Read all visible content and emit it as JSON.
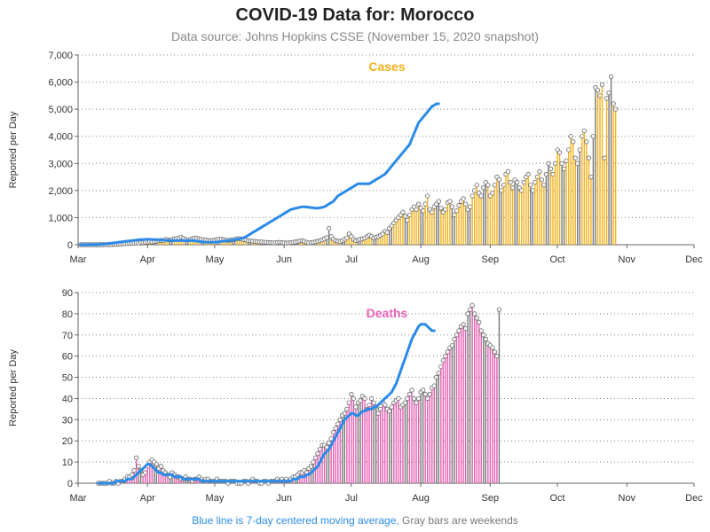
{
  "header": {
    "title": "COVID-19 Data for: Morocco",
    "subtitle": "Data source: Johns Hopkins CSSE (November 15, 2020 snapshot)"
  },
  "footnote": {
    "blue_text": "Blue line is 7-day centered moving average,",
    "gray_text": " Gray bars are weekends"
  },
  "colors": {
    "cases": "#f2b21d",
    "deaths": "#e65fb3",
    "moving_average": "#2b8ae8",
    "weekend": "#777777",
    "grid": "#888888"
  },
  "chart_data": [
    {
      "type": "bar",
      "title": "Cases",
      "ylabel": "Reported per Day",
      "x_ticks": [
        "Mar",
        "Apr",
        "May",
        "Jun",
        "Jul",
        "Aug",
        "Sep",
        "Oct",
        "Nov",
        "Dec"
      ],
      "x_range": [
        "2020-03-01",
        "2020-12-01"
      ],
      "ylim": [
        0,
        7000
      ],
      "y_ticks": [
        "0",
        "1,000",
        "2,000",
        "3,000",
        "4,000",
        "5,000",
        "6,000",
        "7,000"
      ],
      "grid": "horizontal dotted",
      "series": [
        {
          "name": "Cases",
          "start_date": "2020-03-02",
          "values": [
            1,
            0,
            0,
            0,
            0,
            0,
            0,
            1,
            1,
            2,
            2,
            3,
            4,
            6,
            10,
            10,
            15,
            20,
            25,
            35,
            40,
            45,
            50,
            55,
            60,
            70,
            65,
            80,
            80,
            90,
            100,
            110,
            100,
            120,
            130,
            150,
            160,
            150,
            200,
            180,
            170,
            190,
            210,
            230,
            250,
            280,
            230,
            200,
            180,
            190,
            220,
            250,
            240,
            210,
            200,
            180,
            170,
            160,
            150,
            160,
            170,
            190,
            200,
            210,
            180,
            170,
            160,
            170,
            180,
            200,
            220,
            230,
            210,
            190,
            170,
            150,
            140,
            130,
            120,
            110,
            100,
            100,
            90,
            90,
            80,
            80,
            70,
            70,
            80,
            90,
            80,
            70,
            60,
            70,
            80,
            90,
            100,
            120,
            140,
            150,
            120,
            90,
            70,
            80,
            90,
            110,
            130,
            150,
            180,
            220,
            260,
            600,
            300,
            200,
            150,
            130,
            120,
            150,
            200,
            250,
            400,
            300,
            200,
            150,
            180,
            200,
            220,
            250,
            300,
            350,
            300,
            250,
            280,
            300,
            350,
            400,
            500,
            450,
            600,
            700,
            800,
            900,
            1000,
            1100,
            1200,
            1050,
            900,
            1100,
            1300,
            1400,
            1300,
            1500,
            1350,
            1250,
            1500,
            1800,
            1300,
            1200,
            1400,
            1500,
            1600,
            1350,
            1200,
            1300,
            1550,
            1600,
            1400,
            1100,
            1250,
            1450,
            1600,
            1700,
            1500,
            1300,
            1400,
            1800,
            2000,
            2200,
            1900,
            1800,
            2100,
            2300,
            2200,
            1800,
            1900,
            2200,
            2500,
            2400,
            2000,
            2200,
            2600,
            2700,
            2300,
            2100,
            2400,
            2300,
            2100,
            2000,
            2300,
            2500,
            2600,
            2200,
            2000,
            2300,
            2500,
            2700,
            2400,
            2200,
            2600,
            3000,
            2800,
            2600,
            3000,
            3500,
            3400,
            3000,
            2800,
            3100,
            3500,
            4000,
            3800,
            3200,
            3000,
            3500,
            4000,
            4200,
            3800,
            3200,
            2500,
            4000,
            5800,
            5700,
            5500,
            5900,
            3200,
            5400,
            5600,
            6200,
            5200,
            5000
          ]
        },
        {
          "name": "7-day moving average",
          "start_date": "2020-03-02",
          "values": [
            1,
            1,
            1,
            2,
            2,
            3,
            4,
            6,
            10,
            15,
            22,
            30,
            40,
            50,
            60,
            70,
            80,
            90,
            100,
            110,
            120,
            130,
            140,
            150,
            160,
            170,
            180,
            185,
            190,
            195,
            200,
            200,
            195,
            190,
            185,
            180,
            175,
            170,
            165,
            160,
            155,
            150,
            150,
            150,
            150,
            150,
            150,
            150,
            150,
            150,
            150,
            140,
            130,
            120,
            110,
            100,
            95,
            90,
            88,
            90,
            95,
            100,
            110,
            120,
            130,
            140,
            150,
            160,
            170,
            180,
            200,
            220,
            240,
            260,
            300,
            350,
            400,
            450,
            500,
            550,
            600,
            650,
            700,
            750,
            800,
            850,
            900,
            950,
            1000,
            1050,
            1100,
            1150,
            1200,
            1250,
            1300,
            1320,
            1340,
            1360,
            1380,
            1400,
            1400,
            1390,
            1380,
            1370,
            1360,
            1350,
            1350,
            1360,
            1380,
            1400,
            1450,
            1500,
            1550,
            1600,
            1700,
            1800,
            1850,
            1900,
            1950,
            2000,
            2050,
            2100,
            2150,
            2200,
            2250,
            2250,
            2250,
            2250,
            2250,
            2250,
            2300,
            2350,
            2400,
            2450,
            2500,
            2550,
            2600,
            2700,
            2800,
            2900,
            3000,
            3100,
            3200,
            3300,
            3400,
            3500,
            3600,
            3700,
            3900,
            4100,
            4300,
            4500,
            4600,
            4700,
            4800,
            4900,
            5000,
            5100,
            5150,
            5200,
            5200
          ]
        }
      ]
    },
    {
      "type": "bar",
      "title": "Deaths",
      "ylabel": "Reported per Day",
      "x_ticks": [
        "Mar",
        "Apr",
        "May",
        "Jun",
        "Jul",
        "Aug",
        "Sep",
        "Oct",
        "Nov",
        "Dec"
      ],
      "x_range": [
        "2020-03-01",
        "2020-12-01"
      ],
      "ylim": [
        0,
        90
      ],
      "y_ticks": [
        "0",
        "10",
        "20",
        "30",
        "40",
        "50",
        "60",
        "70",
        "80",
        "90"
      ],
      "grid": "horizontal dotted",
      "series": [
        {
          "name": "Deaths",
          "start_date": "2020-03-10",
          "values": [
            0,
            0,
            0,
            0,
            0,
            1,
            0,
            0,
            1,
            0,
            1,
            1,
            2,
            3,
            3,
            4,
            6,
            12,
            8,
            6,
            4,
            5,
            8,
            10,
            11,
            10,
            9,
            7,
            8,
            6,
            5,
            4,
            3,
            5,
            4,
            3,
            3,
            2,
            2,
            3,
            2,
            2,
            1,
            2,
            2,
            3,
            2,
            1,
            2,
            2,
            1,
            1,
            1,
            2,
            1,
            1,
            1,
            1,
            0,
            1,
            1,
            1,
            0,
            0,
            0,
            1,
            1,
            0,
            1,
            2,
            1,
            1,
            0,
            0,
            1,
            1,
            0,
            1,
            1,
            1,
            2,
            1,
            2,
            1,
            2,
            1,
            2,
            3,
            3,
            4,
            5,
            5,
            6,
            5,
            7,
            8,
            10,
            12,
            14,
            16,
            18,
            18,
            17,
            19,
            21,
            24,
            26,
            28,
            30,
            32,
            33,
            35,
            38,
            42,
            40,
            36,
            38,
            39,
            41,
            40,
            35,
            37,
            40,
            38,
            36,
            33,
            35,
            38,
            37,
            35,
            34,
            36,
            38,
            39,
            40,
            36,
            37,
            38,
            40,
            42,
            44,
            40,
            38,
            40,
            43,
            44,
            42,
            40,
            42,
            45,
            46,
            50,
            52,
            55,
            58,
            60,
            62,
            64,
            65,
            68,
            70,
            72,
            74,
            75,
            73,
            80,
            82,
            84,
            80,
            78,
            76,
            72,
            70,
            68,
            66,
            65,
            64,
            62,
            60,
            82
          ]
        },
        {
          "name": "7-day moving average",
          "start_date": "2020-03-10",
          "values": [
            0,
            0,
            0,
            0,
            0,
            0,
            0,
            0,
            1,
            1,
            1,
            1,
            1,
            2,
            2,
            2,
            3,
            4,
            5,
            6,
            7,
            8,
            9,
            9,
            8,
            7,
            6,
            5,
            5,
            4,
            4,
            4,
            4,
            4,
            3,
            3,
            3,
            3,
            2,
            2,
            2,
            2,
            2,
            2,
            2,
            2,
            1,
            1,
            1,
            1,
            1,
            1,
            1,
            1,
            1,
            1,
            1,
            1,
            1,
            1,
            1,
            1,
            1,
            1,
            1,
            1,
            1,
            1,
            1,
            1,
            1,
            1,
            1,
            1,
            1,
            1,
            1,
            1,
            1,
            1,
            1,
            1,
            1,
            1,
            1,
            1,
            1,
            2,
            2,
            2,
            3,
            3,
            3,
            4,
            4,
            5,
            6,
            7,
            8,
            10,
            12,
            14,
            15,
            16,
            18,
            20,
            22,
            24,
            26,
            28,
            30,
            31,
            32,
            33,
            33,
            32,
            32,
            33,
            34,
            34,
            35,
            35,
            35,
            36,
            36,
            37,
            38,
            39,
            40,
            41,
            42,
            43,
            45,
            47,
            50,
            53,
            56,
            59,
            62,
            65,
            68,
            70,
            72,
            74,
            75,
            75,
            75,
            74,
            73,
            72,
            72
          ]
        }
      ]
    }
  ]
}
